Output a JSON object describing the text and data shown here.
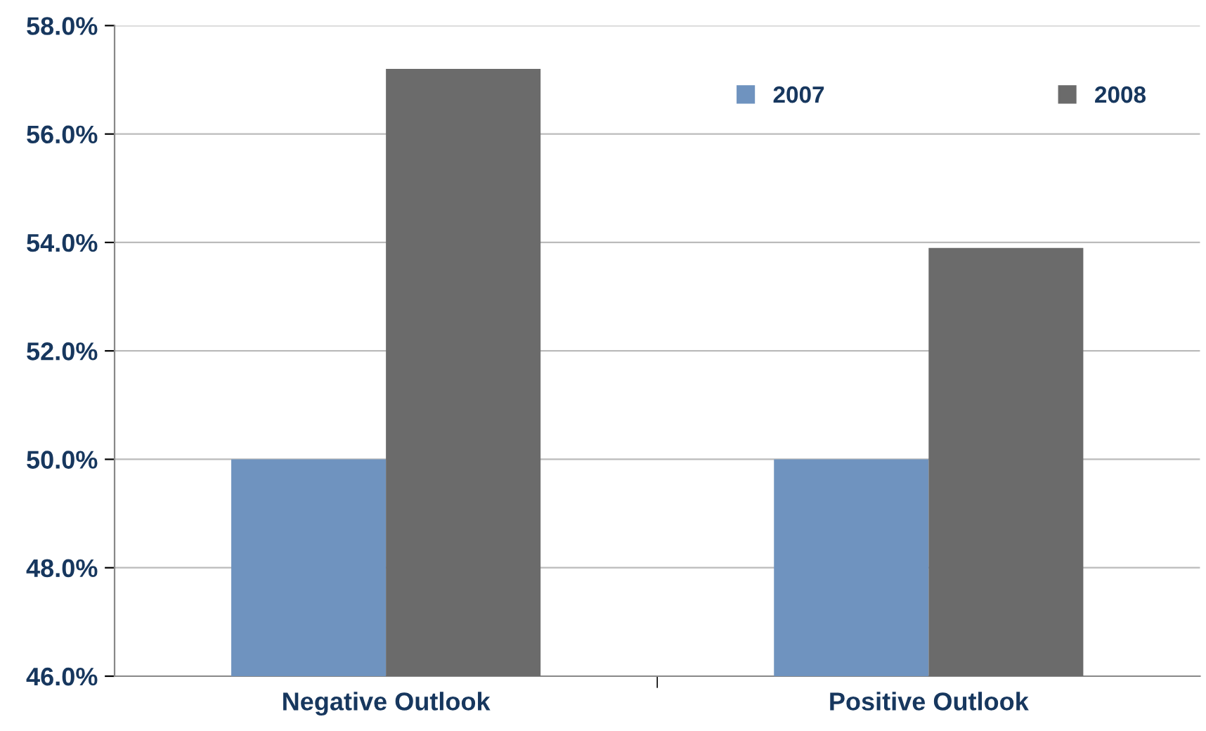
{
  "chart_data": {
    "type": "bar",
    "categories": [
      "Negative Outlook",
      "Positive Outlook"
    ],
    "series": [
      {
        "name": "2007",
        "color": "#6f93bf",
        "values": [
          50.0,
          50.0
        ]
      },
      {
        "name": "2008",
        "color": "#6b6b6b",
        "values": [
          57.2,
          53.9
        ]
      }
    ],
    "ylim": [
      46,
      58
    ],
    "yticks": [
      {
        "value": 46,
        "label": "46.0%"
      },
      {
        "value": 48,
        "label": "48.0%"
      },
      {
        "value": 50,
        "label": "50.0%"
      },
      {
        "value": 52,
        "label": "52.0%"
      },
      {
        "value": 54,
        "label": "54.0%"
      },
      {
        "value": 56,
        "label": "56.0%"
      },
      {
        "value": 58,
        "label": "58.0%"
      }
    ],
    "grid": "y",
    "legend": "top right"
  }
}
